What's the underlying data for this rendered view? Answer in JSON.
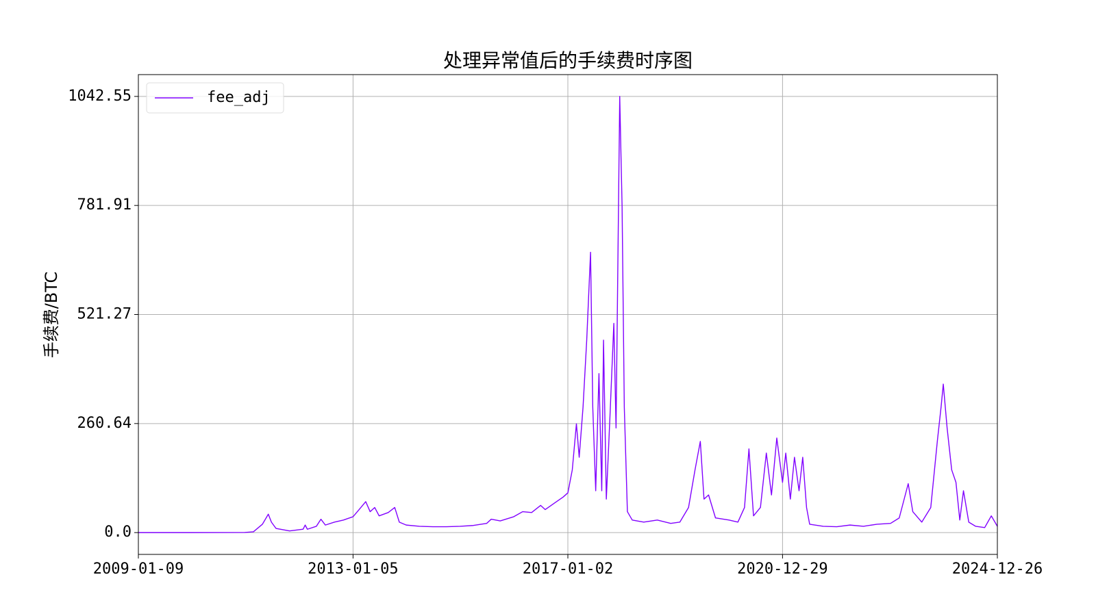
{
  "chart_data": {
    "type": "line",
    "title": "处理异常值后的手续费时序图",
    "y_label": "手续费/BTC",
    "legend": "upper left",
    "grid": true,
    "xlim": [
      "2009-01-09",
      "2024-12-26"
    ],
    "xticks": [
      "2009-01-09",
      "2013-01-05",
      "2017-01-02",
      "2020-12-29",
      "2024-12-26"
    ],
    "ylim": [
      -52.13,
      1094.68
    ],
    "yticks": [
      {
        "value": 0,
        "label": "0.0"
      },
      260.64,
      521.27,
      781.91,
      1042.55
    ],
    "x": [
      "2009-01-09",
      "2010-01-01",
      "2011-01-01",
      "2011-03-01",
      "2011-05-01",
      "2011-06-10",
      "2011-07-01",
      "2011-08-01",
      "2011-11-01",
      "2012-02-01",
      "2012-02-15",
      "2012-03-01",
      "2012-05-01",
      "2012-06-01",
      "2012-07-01",
      "2012-09-01",
      "2012-11-01",
      "2013-01-05",
      "2013-02-15",
      "2013-04-01",
      "2013-05-01",
      "2013-06-01",
      "2013-07-01",
      "2013-09-01",
      "2013-10-15",
      "2013-11-15",
      "2014-01-01",
      "2014-04-01",
      "2014-07-01",
      "2014-10-01",
      "2015-01-01",
      "2015-04-01",
      "2015-07-01",
      "2015-08-01",
      "2015-10-01",
      "2016-01-01",
      "2016-03-01",
      "2016-05-01",
      "2016-07-01",
      "2016-08-01",
      "2016-10-01",
      "2016-12-01",
      "2017-01-02",
      "2017-02-01",
      "2017-03-01",
      "2017-03-20",
      "2017-04-15",
      "2017-05-10",
      "2017-06-05",
      "2017-06-20",
      "2017-07-10",
      "2017-08-01",
      "2017-08-20",
      "2017-09-01",
      "2017-09-20",
      "2017-10-15",
      "2017-11-10",
      "2017-11-25",
      "2017-12-20",
      "2018-01-05",
      "2018-01-20",
      "2018-02-10",
      "2018-03-15",
      "2018-06-01",
      "2018-09-01",
      "2018-12-01",
      "2019-02-01",
      "2019-04-01",
      "2019-05-15",
      "2019-06-20",
      "2019-07-15",
      "2019-08-15",
      "2019-10-01",
      "2020-01-01",
      "2020-03-01",
      "2020-04-15",
      "2020-05-15",
      "2020-06-15",
      "2020-08-01",
      "2020-09-10",
      "2020-10-15",
      "2020-11-20",
      "2020-12-29",
      "2021-01-20",
      "2021-02-20",
      "2021-03-20",
      "2021-04-20",
      "2021-05-15",
      "2021-06-10",
      "2021-07-01",
      "2021-10-01",
      "2022-01-01",
      "2022-04-01",
      "2022-07-01",
      "2022-10-01",
      "2023-01-01",
      "2023-03-01",
      "2023-05-01",
      "2023-06-01",
      "2023-08-01",
      "2023-10-01",
      "2023-11-15",
      "2023-12-10",
      "2023-12-25",
      "2024-01-20",
      "2024-02-20",
      "2024-03-20",
      "2024-04-15",
      "2024-05-10",
      "2024-06-15",
      "2024-08-01",
      "2024-10-01",
      "2024-11-15",
      "2024-12-26"
    ],
    "series": [
      {
        "name": "fee_adj",
        "color": "#8000ff",
        "values": [
          0,
          0,
          0.3,
          2,
          20,
          44,
          25,
          10,
          4,
          8,
          18,
          8,
          15,
          32,
          18,
          25,
          30,
          38,
          55,
          74,
          50,
          60,
          40,
          48,
          60,
          25,
          18,
          15,
          14,
          14,
          15,
          17,
          22,
          32,
          28,
          38,
          50,
          48,
          65,
          55,
          70,
          85,
          95,
          150,
          260,
          180,
          300,
          460,
          670,
          300,
          100,
          380,
          100,
          460,
          80,
          280,
          500,
          250,
          1042.55,
          780,
          300,
          50,
          30,
          25,
          30,
          22,
          25,
          60,
          150,
          218,
          80,
          90,
          35,
          30,
          25,
          60,
          200,
          40,
          60,
          190,
          90,
          226,
          120,
          190,
          80,
          180,
          100,
          180,
          60,
          20,
          15,
          14,
          18,
          15,
          20,
          22,
          35,
          117,
          50,
          25,
          60,
          220,
          300,
          355,
          250,
          150,
          120,
          30,
          100,
          25,
          15,
          12,
          40,
          15
        ]
      }
    ]
  }
}
